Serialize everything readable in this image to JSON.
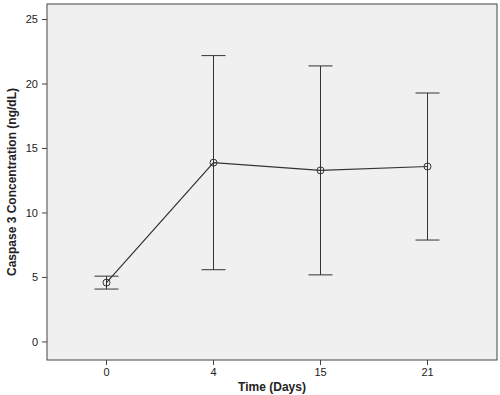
{
  "chart_data": {
    "type": "line",
    "x_label": "Time (Days)",
    "y_label": "Caspase 3 Concentration (ng/dL)",
    "categories": [
      "0",
      "4",
      "15",
      "21"
    ],
    "values": [
      4.6,
      13.9,
      13.3,
      13.6
    ],
    "errors": [
      0.5,
      8.3,
      8.1,
      5.7
    ],
    "color": "#333333",
    "marker": "circle",
    "line_style": "solid",
    "ylim": [
      -1.4,
      26.2
    ],
    "yticks": [
      0,
      5,
      10,
      15,
      20,
      25
    ],
    "grid": false
  }
}
